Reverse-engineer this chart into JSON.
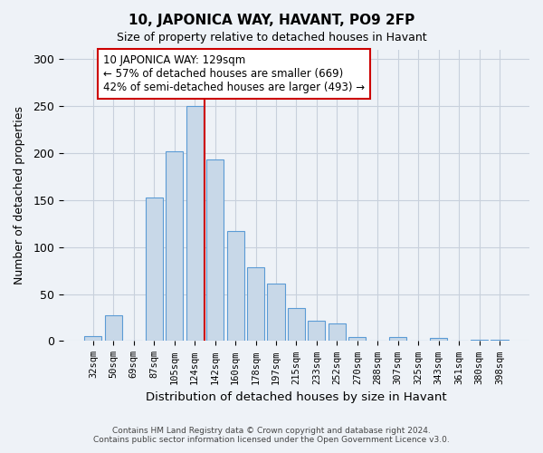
{
  "title": "10, JAPONICA WAY, HAVANT, PO9 2FP",
  "subtitle": "Size of property relative to detached houses in Havant",
  "xlabel": "Distribution of detached houses by size in Havant",
  "ylabel": "Number of detached properties",
  "bar_labels": [
    "32sqm",
    "50sqm",
    "69sqm",
    "87sqm",
    "105sqm",
    "124sqm",
    "142sqm",
    "160sqm",
    "178sqm",
    "197sqm",
    "215sqm",
    "233sqm",
    "252sqm",
    "270sqm",
    "288sqm",
    "307sqm",
    "325sqm",
    "343sqm",
    "361sqm",
    "380sqm",
    "398sqm"
  ],
  "bar_values": [
    5,
    27,
    0,
    153,
    202,
    250,
    193,
    117,
    79,
    61,
    35,
    22,
    19,
    4,
    0,
    4,
    0,
    3,
    0,
    1,
    1
  ],
  "bar_color": "#c8d8e8",
  "bar_edgecolor": "#5b9bd5",
  "vline_x": 5.5,
  "vline_color": "#cc0000",
  "annotation_title": "10 JAPONICA WAY: 129sqm",
  "annotation_line1": "← 57% of detached houses are smaller (669)",
  "annotation_line2": "42% of semi-detached houses are larger (493) →",
  "ylim": [
    0,
    310
  ],
  "yticks": [
    0,
    50,
    100,
    150,
    200,
    250,
    300
  ],
  "footer1": "Contains HM Land Registry data © Crown copyright and database right 2024.",
  "footer2": "Contains public sector information licensed under the Open Government Licence v3.0.",
  "bg_color": "#eef2f7",
  "grid_color": "#c8d0dc"
}
